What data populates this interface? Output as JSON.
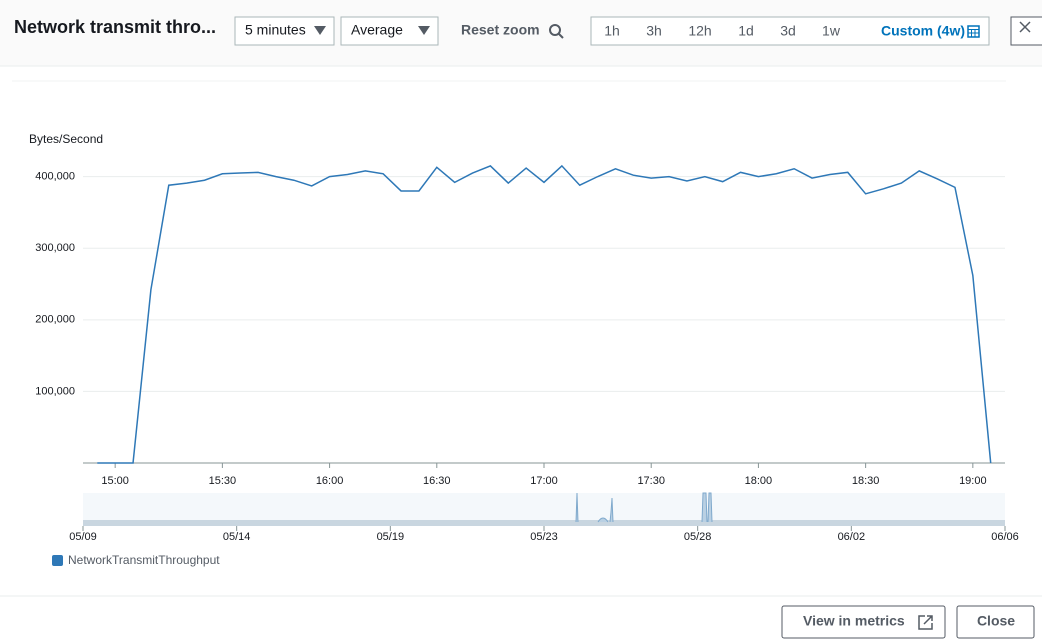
{
  "header": {
    "title": "Network transmit thro...",
    "period": "5 minutes",
    "statistic": "Average",
    "reset_zoom": "Reset zoom",
    "ranges": [
      "1h",
      "3h",
      "12h",
      "1d",
      "3d",
      "1w",
      "Custom (4w)"
    ]
  },
  "chart_data": {
    "type": "line",
    "y_label": "Bytes/Second",
    "x": [
      895,
      900,
      905,
      910,
      915,
      920,
      925,
      930,
      935,
      940,
      945,
      950,
      955,
      960,
      965,
      970,
      975,
      980,
      985,
      990,
      995,
      1000,
      1005,
      1010,
      1015,
      1020,
      1025,
      1030,
      1035,
      1040,
      1045,
      1050,
      1055,
      1060,
      1065,
      1070,
      1075,
      1080,
      1085,
      1090,
      1095,
      1100,
      1105,
      1110,
      1115,
      1120,
      1125,
      1130,
      1135,
      1140,
      1145
    ],
    "series": [
      {
        "name": "NetworkTransmitThroughput",
        "color": "#2e78b7",
        "values": [
          0,
          0,
          0,
          242000,
          388000,
          391000,
          395000,
          404000,
          405000,
          406000,
          400000,
          395000,
          387000,
          400000,
          403000,
          408000,
          404000,
          380000,
          380000,
          413000,
          392000,
          405000,
          415000,
          391000,
          412000,
          392000,
          415000,
          388000,
          400000,
          411000,
          402000,
          398000,
          400000,
          394000,
          400000,
          393000,
          406000,
          400000,
          404000,
          411000,
          398000,
          403000,
          406000,
          376000,
          383000,
          391000,
          408000,
          397000,
          385000,
          262000,
          0
        ]
      }
    ],
    "xlim": [
      891,
      1149
    ],
    "xticks": [
      {
        "value": 900,
        "label": "15:00"
      },
      {
        "value": 930,
        "label": "15:30"
      },
      {
        "value": 960,
        "label": "16:00"
      },
      {
        "value": 990,
        "label": "16:30"
      },
      {
        "value": 1020,
        "label": "17:00"
      },
      {
        "value": 1050,
        "label": "17:30"
      },
      {
        "value": 1080,
        "label": "18:00"
      },
      {
        "value": 1110,
        "label": "18:30"
      },
      {
        "value": 1140,
        "label": "19:00"
      }
    ],
    "ylim": [
      0,
      440000
    ],
    "yticks": [
      {
        "value": 100000,
        "label": "100,000"
      },
      {
        "value": 200000,
        "label": "200,000"
      },
      {
        "value": 300000,
        "label": "300,000"
      },
      {
        "value": 400000,
        "label": "400,000"
      }
    ],
    "grid": true
  },
  "navigator": {
    "ticks": [
      "05/09",
      "05/14",
      "05/19",
      "05/23",
      "05/28",
      "06/02",
      "06/06"
    ]
  },
  "footer": {
    "buttons": [
      "View in metrics",
      "Close"
    ]
  }
}
